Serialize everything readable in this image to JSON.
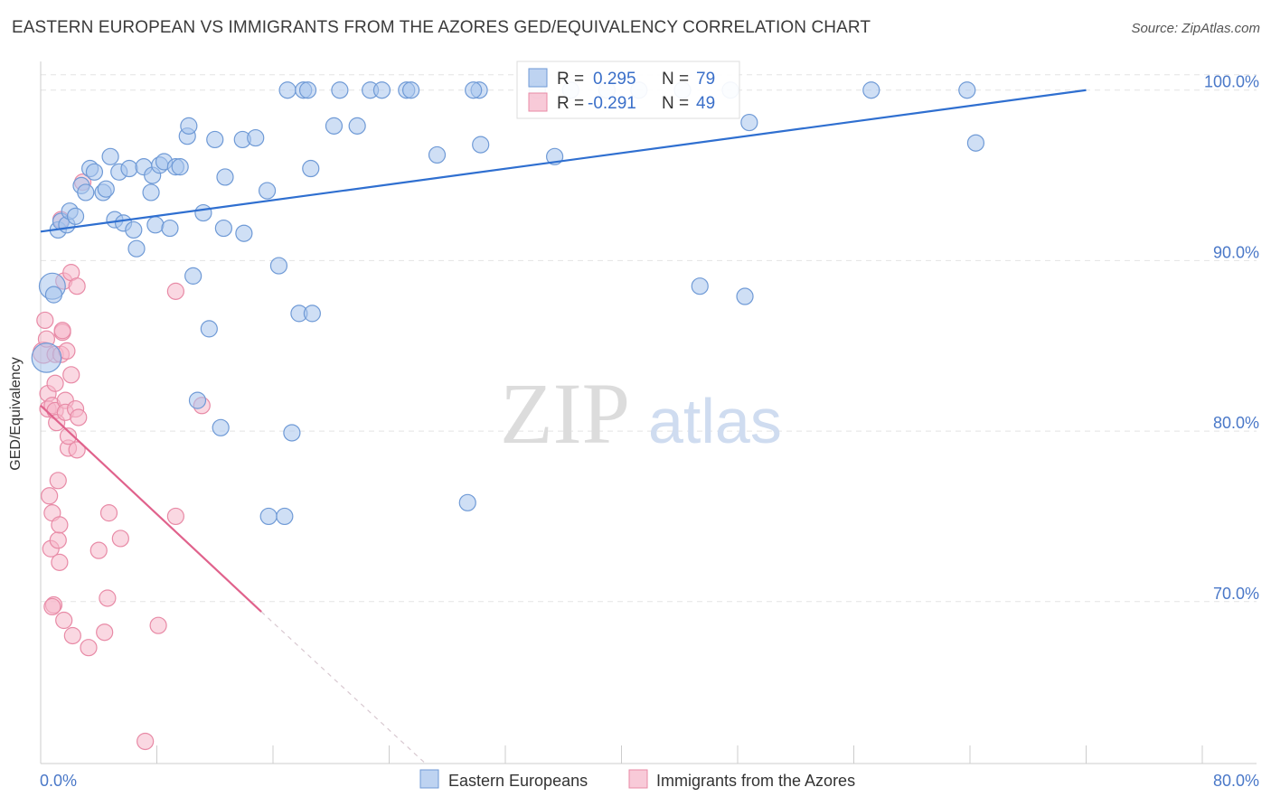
{
  "title": "EASTERN EUROPEAN VS IMMIGRANTS FROM THE AZORES GED/EQUIVALENCY CORRELATION CHART",
  "source": "Source: ZipAtlas.com",
  "watermark": {
    "zip": "ZIP",
    "atlas": "atlas"
  },
  "colors": {
    "blue_fill": "#a8c4ec",
    "blue_stroke": "#6f9ad6",
    "blue_line": "#2f6fd0",
    "pink_fill": "#f5b8cb",
    "pink_stroke": "#e88aa6",
    "pink_line": "#e0628c",
    "grid": "#e4e4e4",
    "axis_text": "#4a78c8"
  },
  "stats": {
    "r_label": "R =",
    "n_label": "N =",
    "series": [
      {
        "r": "0.295",
        "n": "79"
      },
      {
        "r": "-0.291",
        "n": "49"
      }
    ]
  },
  "chart_data": {
    "type": "scatter",
    "title": "EASTERN EUROPEAN VS IMMIGRANTS FROM THE AZORES GED/EQUIVALENCY CORRELATION CHART",
    "xlabel": "",
    "ylabel": "GED/Equivalency",
    "xlim": [
      0,
      80
    ],
    "ylim": [
      60.5,
      102
    ],
    "x_tick_labels": [
      "0.0%",
      "80.0%"
    ],
    "y_ticks": [
      70,
      80,
      90,
      100
    ],
    "y_tick_labels": [
      "70.0%",
      "80.0%",
      "90.0%",
      "100.0%"
    ],
    "grid": true,
    "legend_position": "bottom-center",
    "series": [
      {
        "name": "Eastern Europeans",
        "trend": {
          "x0": 0.0,
          "y0": 91.7,
          "x1": 72.0,
          "y1": 100.0,
          "dashed_to": null
        },
        "points": [
          [
            0.8,
            88.5,
            1.6
          ],
          [
            0.9,
            88.0,
            1
          ],
          [
            1.2,
            91.8,
            1
          ],
          [
            1.4,
            92.3,
            1
          ],
          [
            1.8,
            92.1,
            1
          ],
          [
            2.0,
            92.9,
            1
          ],
          [
            2.4,
            92.6,
            1
          ],
          [
            2.8,
            94.4,
            1
          ],
          [
            3.1,
            94.0,
            1
          ],
          [
            3.4,
            95.4,
            1
          ],
          [
            3.7,
            95.2,
            1
          ],
          [
            4.3,
            94.0,
            1
          ],
          [
            4.5,
            94.2,
            1
          ],
          [
            4.8,
            96.1,
            1
          ],
          [
            5.1,
            92.4,
            1
          ],
          [
            5.4,
            95.2,
            1
          ],
          [
            5.7,
            92.2,
            1
          ],
          [
            6.1,
            95.4,
            1
          ],
          [
            6.4,
            91.8,
            1
          ],
          [
            6.6,
            90.7,
            1
          ],
          [
            7.1,
            95.5,
            1
          ],
          [
            7.6,
            94.0,
            1
          ],
          [
            7.7,
            95.0,
            1
          ],
          [
            7.9,
            92.1,
            1
          ],
          [
            8.2,
            95.6,
            1
          ],
          [
            8.5,
            95.8,
            1
          ],
          [
            8.9,
            91.9,
            1
          ],
          [
            9.3,
            95.5,
            1
          ],
          [
            9.6,
            95.5,
            1
          ],
          [
            10.1,
            97.3,
            1
          ],
          [
            10.2,
            97.9,
            1
          ],
          [
            10.5,
            89.1,
            1
          ],
          [
            11.2,
            92.8,
            1
          ],
          [
            11.6,
            86.0,
            1
          ],
          [
            12.0,
            97.1,
            1
          ],
          [
            10.8,
            81.8,
            1
          ],
          [
            12.4,
            80.2,
            1
          ],
          [
            12.6,
            91.9,
            1
          ],
          [
            12.7,
            94.9,
            1
          ],
          [
            13.9,
            97.1,
            1
          ],
          [
            14.0,
            91.6,
            1
          ],
          [
            14.8,
            97.2,
            1
          ],
          [
            15.6,
            94.1,
            1
          ],
          [
            15.7,
            75.0,
            1
          ],
          [
            16.4,
            89.7,
            1
          ],
          [
            16.8,
            75.0,
            1
          ],
          [
            17.0,
            100.0,
            1
          ],
          [
            17.3,
            79.9,
            1
          ],
          [
            17.8,
            86.9,
            1
          ],
          [
            18.1,
            100.0,
            1
          ],
          [
            18.4,
            100.0,
            1
          ],
          [
            18.6,
            95.4,
            1
          ],
          [
            18.7,
            86.9,
            1
          ],
          [
            20.2,
            97.9,
            1
          ],
          [
            20.6,
            100.0,
            1
          ],
          [
            21.8,
            97.9,
            1
          ],
          [
            22.7,
            100.0,
            1
          ],
          [
            23.5,
            100.0,
            1
          ],
          [
            25.2,
            100.0,
            1
          ],
          [
            25.5,
            100.0,
            1
          ],
          [
            27.3,
            96.2,
            1
          ],
          [
            29.4,
            75.8,
            1
          ],
          [
            30.2,
            100.0,
            1
          ],
          [
            30.3,
            96.8,
            1
          ],
          [
            34.2,
            100.0,
            1
          ],
          [
            35.4,
            96.1,
            1
          ],
          [
            39.0,
            100.0,
            1
          ],
          [
            41.2,
            100.0,
            1
          ],
          [
            44.2,
            100.0,
            1
          ],
          [
            45.4,
            88.5,
            1
          ],
          [
            47.5,
            100.0,
            1
          ],
          [
            48.5,
            87.9,
            1
          ],
          [
            48.8,
            98.1,
            1
          ],
          [
            57.2,
            100.0,
            1
          ],
          [
            63.8,
            100.0,
            1
          ],
          [
            64.4,
            96.9,
            1
          ],
          [
            29.8,
            100.0,
            1
          ],
          [
            36.5,
            100.0,
            1
          ],
          [
            0.4,
            84.3,
            1.8
          ]
        ]
      },
      {
        "name": "Immigrants from the Azores",
        "trend": {
          "x0": 0.0,
          "y0": 81.5,
          "x1": 15.2,
          "y1": 69.4,
          "dashed_to": {
            "x": 26.5,
            "y": 60.5
          }
        },
        "points": [
          [
            0.2,
            84.6,
            1.3
          ],
          [
            0.3,
            86.5,
            1
          ],
          [
            0.4,
            85.4,
            1
          ],
          [
            0.5,
            82.2,
            1
          ],
          [
            0.5,
            81.3,
            1
          ],
          [
            0.6,
            76.2,
            1
          ],
          [
            0.7,
            73.1,
            1
          ],
          [
            0.8,
            81.5,
            1
          ],
          [
            0.8,
            75.2,
            1
          ],
          [
            0.9,
            69.8,
            1
          ],
          [
            1.0,
            84.5,
            1
          ],
          [
            1.0,
            82.8,
            1
          ],
          [
            1.0,
            81.2,
            1
          ],
          [
            1.1,
            80.5,
            1
          ],
          [
            1.2,
            77.1,
            1
          ],
          [
            1.2,
            73.6,
            1
          ],
          [
            1.3,
            74.5,
            1
          ],
          [
            1.4,
            92.4,
            1
          ],
          [
            1.4,
            84.5,
            1
          ],
          [
            1.5,
            85.8,
            1
          ],
          [
            1.5,
            85.9,
            1
          ],
          [
            1.6,
            88.8,
            1
          ],
          [
            1.7,
            81.8,
            1
          ],
          [
            1.7,
            81.1,
            1
          ],
          [
            1.6,
            68.9,
            1
          ],
          [
            1.8,
            84.7,
            1
          ],
          [
            1.9,
            79.0,
            1
          ],
          [
            1.9,
            79.7,
            1
          ],
          [
            2.1,
            89.3,
            1
          ],
          [
            2.1,
            83.3,
            1
          ],
          [
            2.2,
            68.0,
            1
          ],
          [
            2.4,
            81.3,
            1
          ],
          [
            2.5,
            78.9,
            1
          ],
          [
            2.5,
            88.5,
            1
          ],
          [
            2.6,
            80.8,
            1
          ],
          [
            2.9,
            94.6,
            1
          ],
          [
            3.3,
            67.3,
            1
          ],
          [
            4.0,
            73.0,
            1
          ],
          [
            4.4,
            68.2,
            1
          ],
          [
            4.6,
            70.2,
            1
          ],
          [
            4.7,
            75.2,
            1
          ],
          [
            5.5,
            73.7,
            1
          ],
          [
            7.2,
            61.8,
            1
          ],
          [
            8.1,
            68.6,
            1
          ],
          [
            9.3,
            75.0,
            1
          ],
          [
            9.3,
            88.2,
            1
          ],
          [
            11.1,
            81.5,
            1
          ],
          [
            0.8,
            69.7,
            1
          ],
          [
            1.3,
            72.3,
            1
          ]
        ]
      }
    ]
  }
}
